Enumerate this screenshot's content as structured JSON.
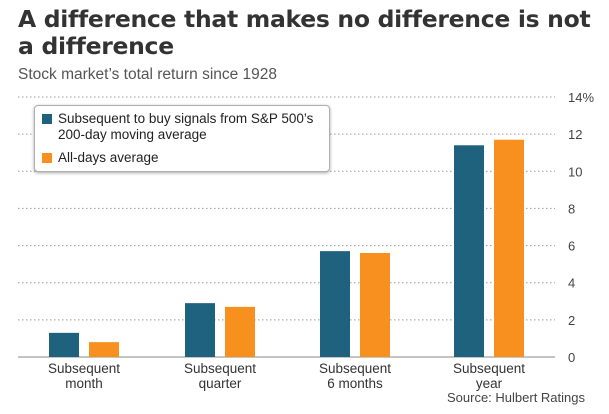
{
  "header": {
    "title": "A difference that makes no difference is not a difference",
    "subtitle": "Stock market’s total return since 1928"
  },
  "source": "Source: Hulbert Ratings",
  "chart_data": {
    "type": "bar",
    "title": "A difference that makes no difference is not a difference",
    "subtitle": "Stock market’s total return since 1928",
    "categories": [
      [
        "Subsequent",
        "month"
      ],
      [
        "Subsequent",
        "quarter"
      ],
      [
        "Subsequent",
        "6 months"
      ],
      [
        "Subsequent",
        "year"
      ]
    ],
    "series": [
      {
        "name": "Subsequent to buy signals from S&P 500’s 200-day moving average",
        "color": "#1f627e",
        "values": [
          1.3,
          2.9,
          5.7,
          11.4
        ]
      },
      {
        "name": "All-days average",
        "color": "#f7901e",
        "values": [
          0.8,
          2.7,
          5.6,
          11.7
        ]
      }
    ],
    "ylim": [
      0,
      14
    ],
    "yticks": [
      0,
      2,
      4,
      6,
      8,
      10,
      12,
      14
    ],
    "ytick_labels": [
      "0",
      "2",
      "4",
      "6",
      "8",
      "10",
      "12",
      "14%"
    ],
    "y_axis_side": "right",
    "grid": "dotted horizontal",
    "legend_position": "top-left"
  }
}
